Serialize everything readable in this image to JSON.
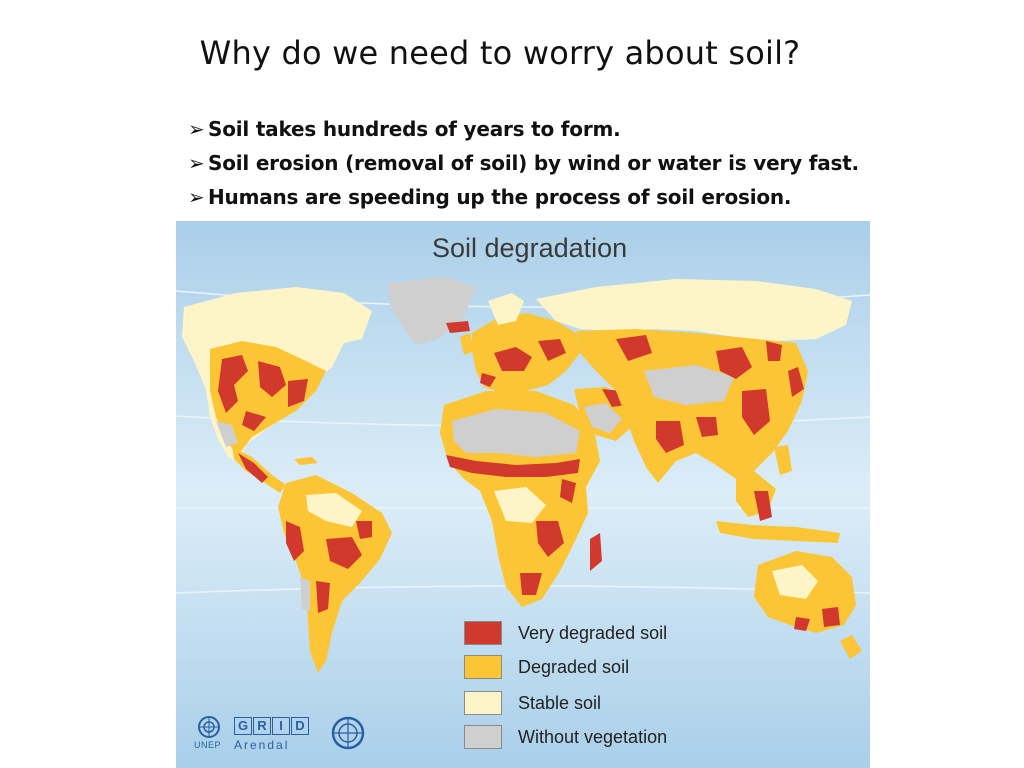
{
  "slide": {
    "title": "Why do we need to worry about soil?",
    "bullet_marker": "➢",
    "bullets": [
      "Soil takes hundreds of years to form.",
      "Soil erosion (removal of soil) by wind or water is very fast.",
      "Humans are speeding up the process of soil erosion."
    ]
  },
  "map": {
    "title": "Soil degradation",
    "colors": {
      "ocean": "#c9e3f3",
      "very_degraded": "#d0392c",
      "degraded": "#fbc535",
      "stable": "#fdf5c8",
      "without_vegetation": "#cfcfcf"
    },
    "legend": [
      {
        "label": "Very degraded soil",
        "color": "#d0392c"
      },
      {
        "label": "Degraded soil",
        "color": "#fbc535"
      },
      {
        "label": "Stable soil",
        "color": "#fdf5c8"
      },
      {
        "label": "Without vegetation",
        "color": "#cfcfcf"
      }
    ],
    "credits": {
      "unep": "UNEP",
      "grid_letters": [
        "G",
        "R",
        "I",
        "D"
      ],
      "arendal": "Arendal"
    }
  }
}
